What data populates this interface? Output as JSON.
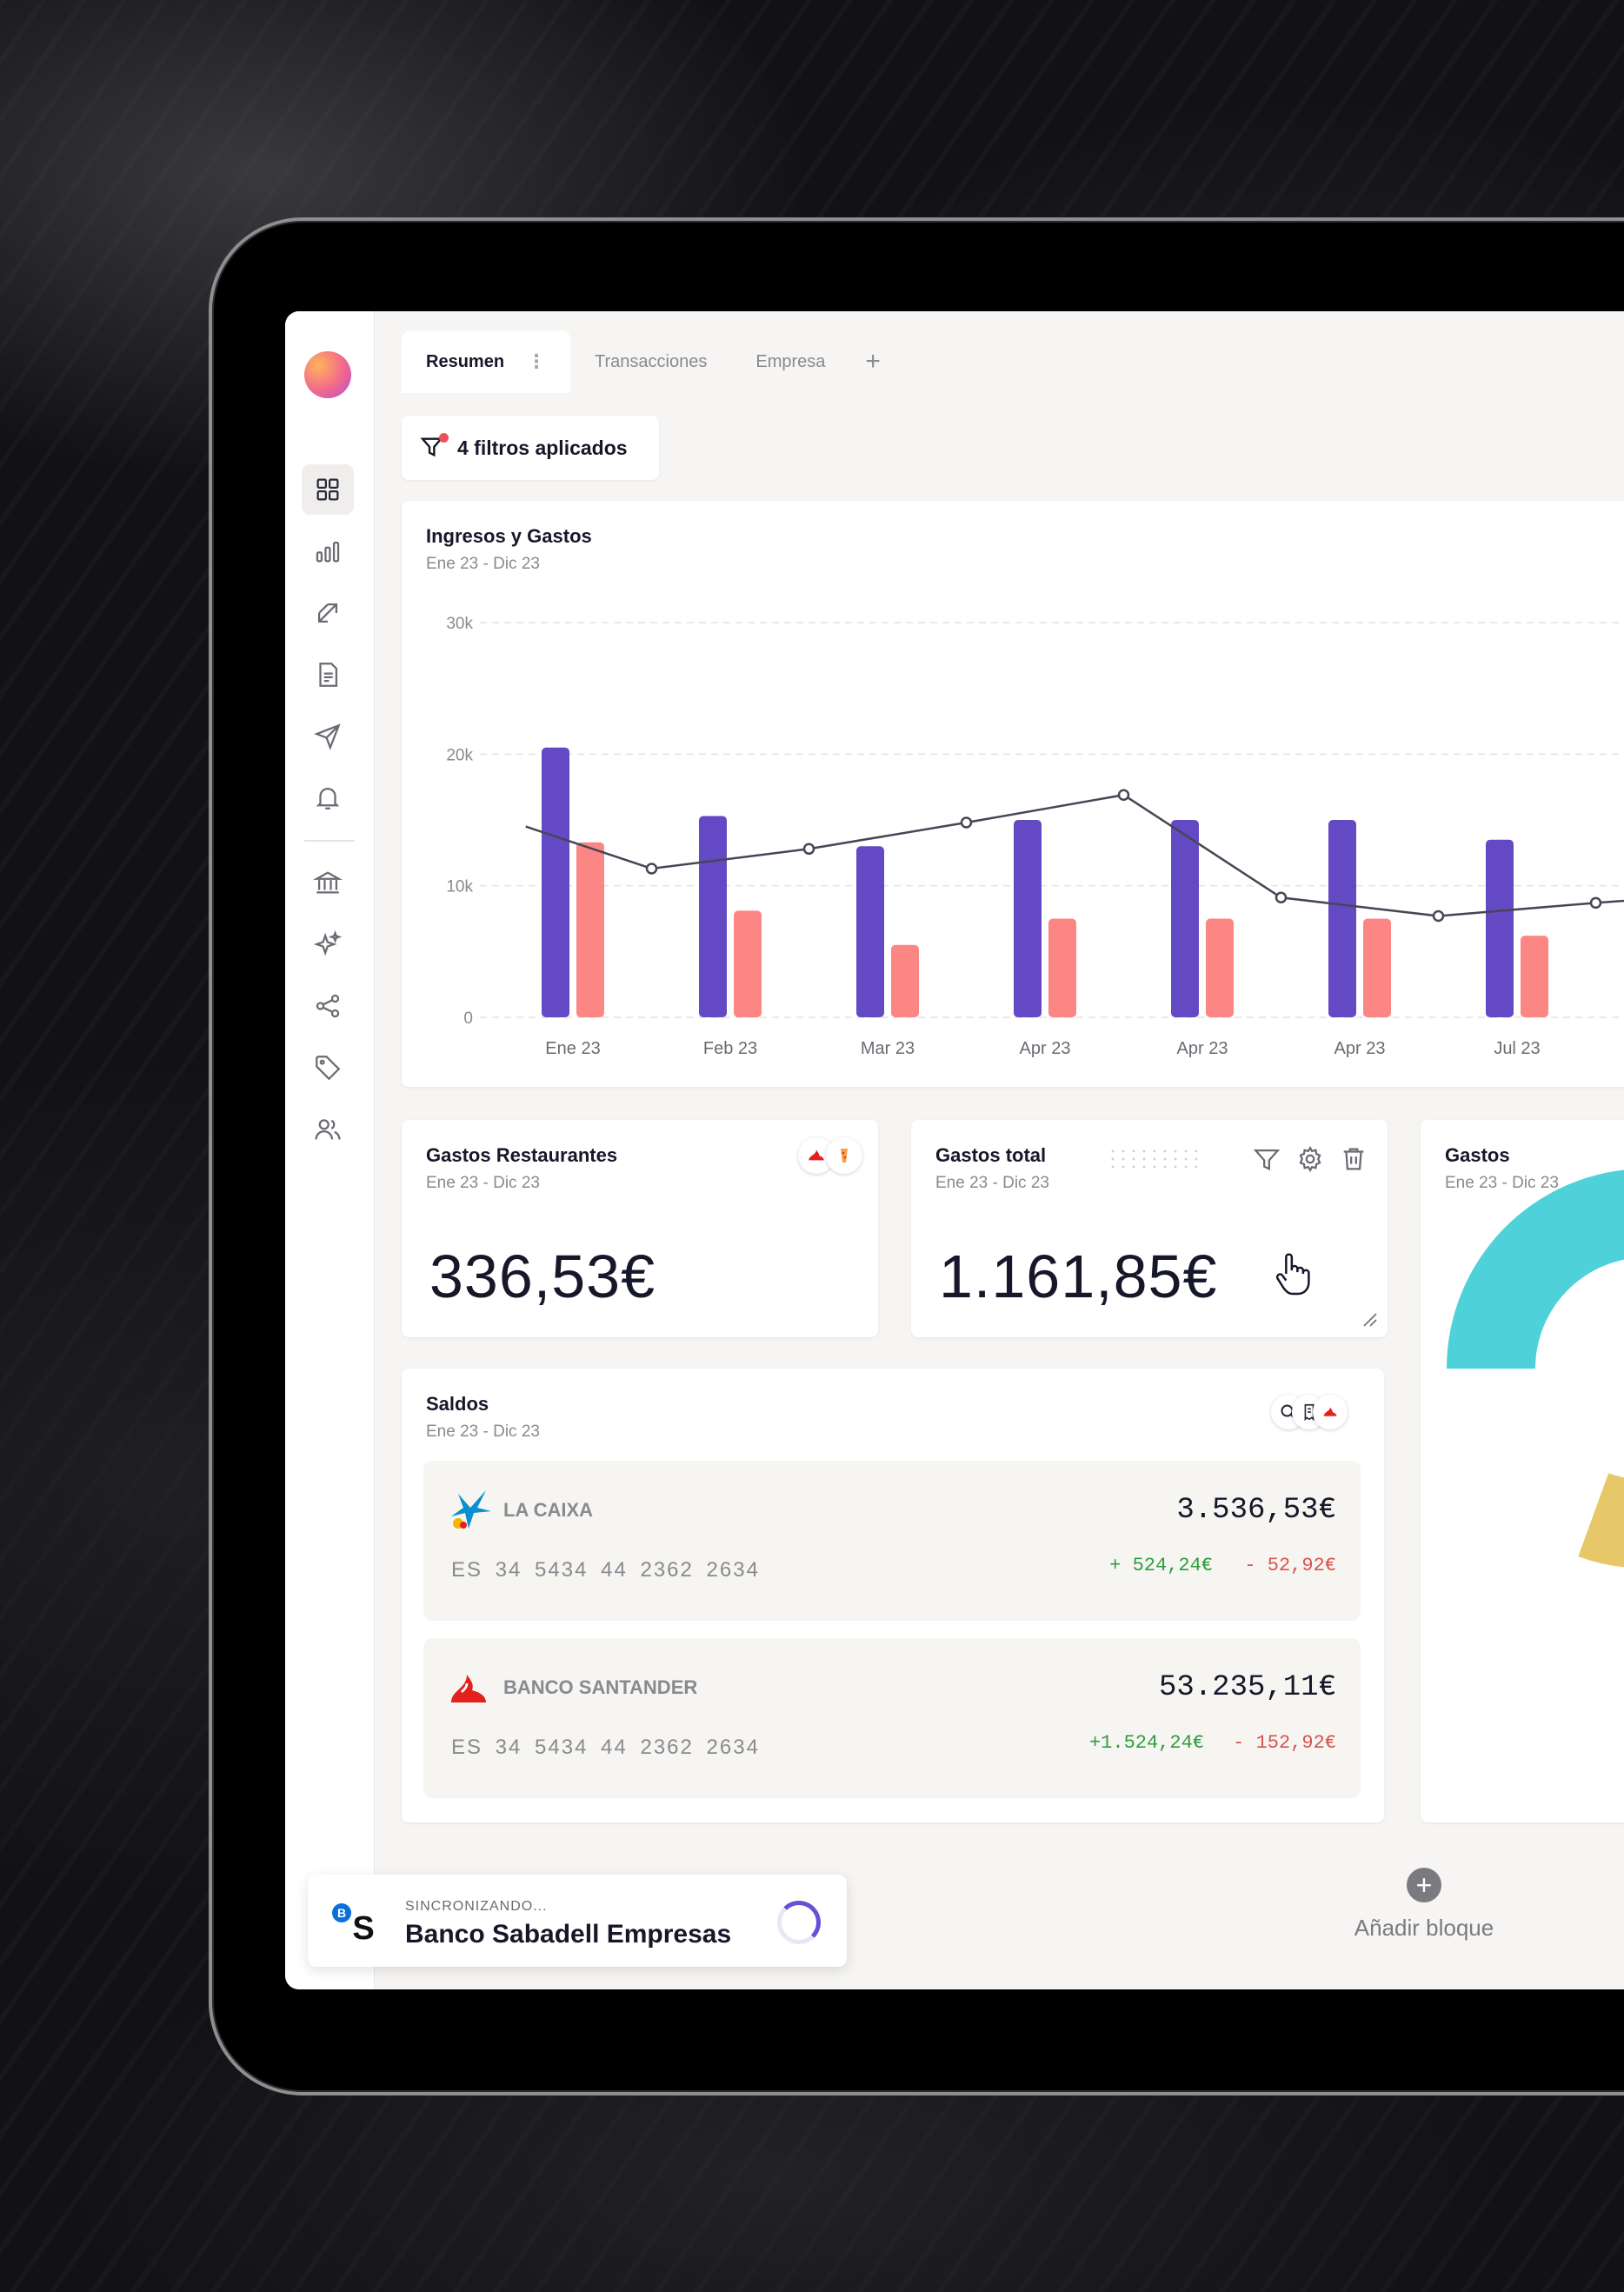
{
  "tabs": [
    {
      "label": "Resumen"
    },
    {
      "label": "Transacciones"
    },
    {
      "label": "Empresa"
    }
  ],
  "tab_menu_icon": "more-vertical-icon",
  "tab_add_label": "+",
  "filter": {
    "label": "4 filtros aplicados",
    "icon": "filter-icon",
    "indicator_color": "#f0505a"
  },
  "sidebar": {
    "items": [
      {
        "icon": "dashboard-grid-icon",
        "active": true
      },
      {
        "icon": "bar-chart-icon"
      },
      {
        "icon": "transfer-arrows-icon"
      },
      {
        "icon": "document-icon"
      },
      {
        "icon": "send-icon"
      },
      {
        "icon": "bell-icon"
      },
      {
        "icon": "bank-icon"
      },
      {
        "icon": "sparkles-icon"
      },
      {
        "icon": "share-icon"
      },
      {
        "icon": "tag-icon"
      },
      {
        "icon": "users-icon"
      }
    ]
  },
  "income_expenses": {
    "title": "Ingresos y Gastos",
    "period": "Ene 23 -  Dic 23"
  },
  "chart_data": {
    "type": "bar",
    "title": "Ingresos y Gastos",
    "categories": [
      "Ene 23",
      "Feb 23",
      "Mar 23",
      "Apr 23",
      "Apr 23",
      "Apr 23",
      "Jul 23"
    ],
    "y_ticks": [
      "30k",
      "20k",
      "10k",
      "0"
    ],
    "ylim": [
      0,
      30000
    ],
    "grid": true,
    "series": [
      {
        "type": "bar",
        "color": "#6349c4",
        "values": [
          20500,
          15300,
          13000,
          15000,
          15000,
          15000,
          13500
        ]
      },
      {
        "type": "bar",
        "color": "#fc8684",
        "values": [
          13300,
          8100,
          5500,
          7500,
          7500,
          7500,
          6200
        ]
      },
      {
        "type": "line",
        "color": "#464655",
        "x": [
          -0.3,
          0.5,
          1.5,
          2.5,
          3.5,
          4.5,
          5.5,
          6.5,
          7.2
        ],
        "values": [
          14500,
          11300,
          12800,
          14800,
          16900,
          9100,
          7700,
          8700,
          9300
        ]
      }
    ]
  },
  "restaurants": {
    "title": "Gastos Restaurantes",
    "period": "Ene 23 -  Dic 23",
    "value": "336,53€"
  },
  "total_expenses": {
    "title": "Gastos total",
    "period": "Ene 23 -  Dic 23",
    "value": "1.161,85€"
  },
  "expenses_donut": {
    "title": "Gastos",
    "period": "Ene 23 -  Dic 23",
    "segment_colors": [
      "#4fd1d9",
      "#2dbb8c",
      "#fc8270",
      "#e6c868"
    ]
  },
  "balances": {
    "title": "Saldos",
    "period": "Ene 23 -  Dic 23",
    "accounts": [
      {
        "name": "LA CAIXA",
        "iban": "ES  34  5434  44  2362  2634",
        "balance": "3.536,53€",
        "plus": "+ 524,24€",
        "minus": "- 52,92€"
      },
      {
        "name": "BANCO SANTANDER",
        "iban": "ES  34  5434  44  2362  2634",
        "balance": "53.235,11€",
        "plus": "+1.524,24€",
        "minus": "- 152,92€"
      }
    ]
  },
  "sync": {
    "status": "SINCRONIZANDO...",
    "bank": "Banco Sabadell Empresas"
  },
  "add_block": {
    "label": "Añadir bloque",
    "icon": "plus-circle-icon"
  }
}
